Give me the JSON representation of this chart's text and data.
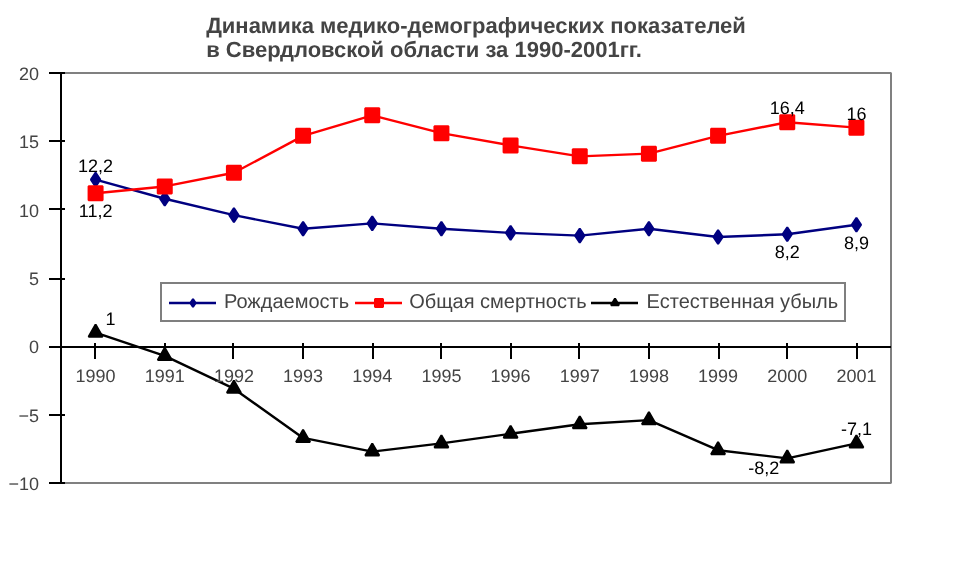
{
  "chart_data": {
    "type": "line",
    "title": "Динамика медико-демографических показателей\nв Свердловской области за 1990-2001гг.",
    "categories": [
      "1990",
      "1991",
      "1992",
      "1993",
      "1994",
      "1995",
      "1996",
      "1997",
      "1998",
      "1999",
      "2000",
      "2001"
    ],
    "ylim": [
      -10,
      20
    ],
    "yticks": [
      -10,
      -5,
      0,
      5,
      10,
      15,
      20
    ],
    "grid": false,
    "legend": "bottom",
    "series": [
      {
        "name": "Рождаемость",
        "color": "#000080",
        "marker": "diamond",
        "values": [
          12.2,
          10.8,
          9.6,
          8.6,
          9.0,
          8.6,
          8.3,
          8.1,
          8.6,
          8.0,
          8.2,
          8.9
        ],
        "value_labels": [
          "12,2",
          null,
          null,
          null,
          null,
          null,
          null,
          null,
          null,
          null,
          "8,2",
          "8,9"
        ]
      },
      {
        "name": "Общая смертность",
        "color": "#ff0000",
        "marker": "square",
        "values": [
          11.2,
          11.7,
          12.7,
          15.4,
          16.9,
          15.6,
          14.7,
          13.9,
          14.1,
          15.4,
          16.4,
          16
        ],
        "value_labels": [
          "11,2",
          null,
          null,
          null,
          null,
          null,
          null,
          null,
          null,
          null,
          "16,4",
          "16"
        ]
      },
      {
        "name": "Естественная убыль",
        "color": "#000000",
        "marker": "triangle",
        "values": [
          1,
          -0.7,
          -3.1,
          -6.7,
          -7.7,
          -7.1,
          -6.4,
          -5.7,
          -5.4,
          -7.6,
          -8.2,
          -7.1
        ],
        "value_labels": [
          "1",
          null,
          null,
          null,
          null,
          null,
          null,
          null,
          null,
          null,
          "-8,2",
          "-7,1"
        ]
      }
    ]
  }
}
